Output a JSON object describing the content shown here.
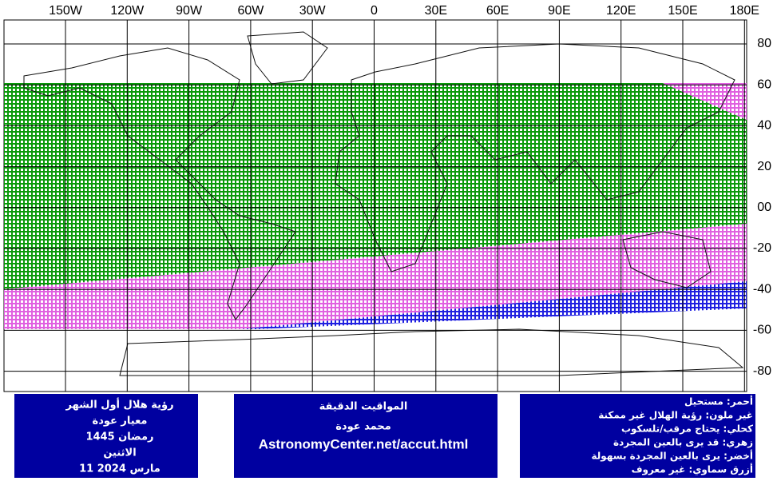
{
  "map": {
    "lon_labels": [
      "150W",
      "120W",
      "90W",
      "60W",
      "30W",
      "0",
      "30E",
      "60E",
      "90E",
      "120E",
      "150E",
      "180E"
    ],
    "lat_labels": [
      "80",
      "60",
      "40",
      "20",
      "00",
      "-20",
      "-40",
      "-60",
      "-80"
    ]
  },
  "boxes": {
    "left": {
      "lines": [
        "رؤية هلال أول الشهر",
        "معيار عودة",
        "رمضان 1445",
        "الاثنين",
        "11 مارس 2024"
      ]
    },
    "middle": {
      "lines": [
        "المواقيت الدقيقة",
        "محمد عودة",
        "AstronomyCenter.net/accut.html"
      ]
    },
    "right": {
      "lines": [
        "أحمر: مستحيل",
        "غير ملون: رؤية الهلال غير ممكنة",
        "كحلي: يحتاج مرقب/تلسكوب",
        "زهري: قد يرى بالعين المجردة",
        "أخضر: يرى بالعين المجردة بسهولة",
        "أزرق سماوي: غير معروف"
      ]
    }
  }
}
